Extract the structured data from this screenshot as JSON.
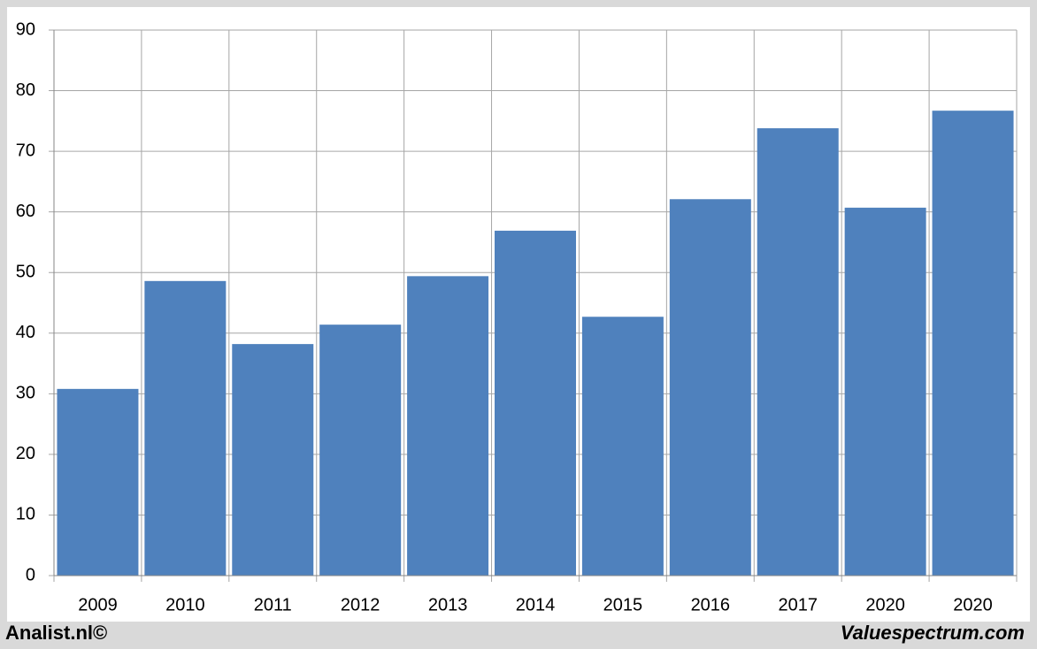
{
  "chart_data": {
    "type": "bar",
    "categories": [
      "2009",
      "2010",
      "2011",
      "2012",
      "2013",
      "2014",
      "2015",
      "2016",
      "2017",
      "2020",
      "2020"
    ],
    "values": [
      30.8,
      48.6,
      38.2,
      41.4,
      49.4,
      56.9,
      42.7,
      62.1,
      73.8,
      60.7,
      76.7
    ],
    "color": "#4f81bd",
    "ylim": [
      0,
      90
    ],
    "yticks": [
      0,
      10,
      20,
      30,
      40,
      50,
      60,
      70,
      80,
      90
    ],
    "grid": true
  },
  "footer": {
    "left": "Analist.nl©",
    "right": "Valuespectrum.com"
  }
}
